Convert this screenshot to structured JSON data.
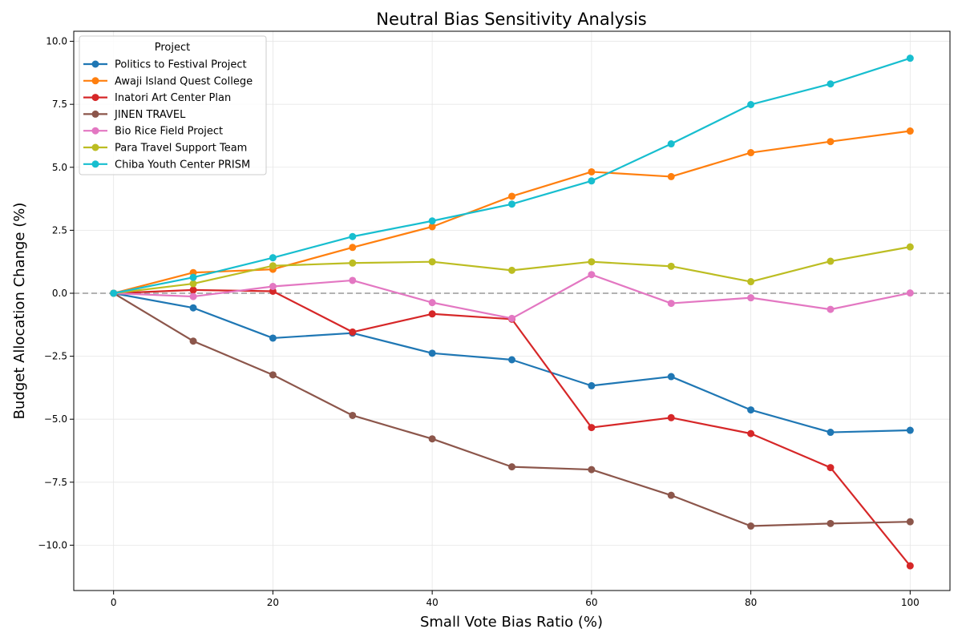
{
  "chart_data": {
    "type": "line",
    "title": "Neutral Bias Sensitivity Analysis",
    "xlabel": "Small Vote Bias Ratio (%)",
    "ylabel": "Budget Allocation Change (%)",
    "xlim": [
      -5,
      105
    ],
    "ylim": [
      -11.8,
      10.4
    ],
    "xticks": [
      0,
      20,
      40,
      60,
      80,
      100
    ],
    "yticks": [
      -10.0,
      -7.5,
      -5.0,
      -2.5,
      0.0,
      2.5,
      5.0,
      7.5,
      10.0
    ],
    "ytick_labels": [
      "−10.0",
      "−7.5",
      "−5.0",
      "−2.5",
      "0.0",
      "2.5",
      "5.0",
      "7.5",
      "10.0"
    ],
    "grid": true,
    "reference_line": 0,
    "legend_title": "Project",
    "legend_position": "top-left",
    "x": [
      0,
      10,
      20,
      30,
      40,
      50,
      60,
      70,
      80,
      90,
      100
    ],
    "series": [
      {
        "name": "Politics to Festival Project",
        "color": "#1f77b4",
        "values": [
          0,
          -0.58,
          -1.78,
          -1.58,
          -2.38,
          -2.64,
          -3.67,
          -3.31,
          -4.63,
          -5.52,
          -5.44
        ]
      },
      {
        "name": "Awaji Island Quest College",
        "color": "#ff7f0e",
        "values": [
          0,
          0.82,
          0.95,
          1.82,
          2.64,
          3.85,
          4.82,
          4.63,
          5.58,
          6.02,
          6.44
        ]
      },
      {
        "name": "Inatori Art Center Plan",
        "color": "#d62728",
        "values": [
          0,
          0.13,
          0.08,
          -1.54,
          -0.82,
          -1.03,
          -5.33,
          -4.94,
          -5.57,
          -6.92,
          -10.82
        ]
      },
      {
        "name": "JINEN TRAVEL",
        "color": "#8c564b",
        "values": [
          0,
          -1.9,
          -3.24,
          -4.85,
          -5.78,
          -6.89,
          -7.0,
          -8.02,
          -9.24,
          -9.14,
          -9.07
        ]
      },
      {
        "name": "Bio Rice Field Project",
        "color": "#e377c2",
        "values": [
          0,
          -0.13,
          0.27,
          0.51,
          -0.37,
          -1.0,
          0.74,
          -0.4,
          -0.18,
          -0.64,
          0.01
        ]
      },
      {
        "name": "Para Travel Support Team",
        "color": "#bcbd22",
        "values": [
          0,
          0.38,
          1.09,
          1.2,
          1.25,
          0.91,
          1.25,
          1.07,
          0.46,
          1.27,
          1.84
        ]
      },
      {
        "name": "Chiba Youth Center PRISM",
        "color": "#17becf",
        "values": [
          0,
          0.63,
          1.41,
          2.25,
          2.87,
          3.54,
          4.46,
          5.93,
          7.49,
          8.31,
          9.33
        ]
      }
    ]
  }
}
